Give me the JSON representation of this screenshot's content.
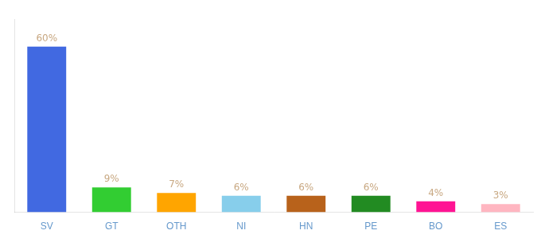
{
  "chart_data": {
    "type": "bar",
    "categories": [
      "SV",
      "GT",
      "OTH",
      "NI",
      "HN",
      "PE",
      "BO",
      "ES"
    ],
    "values": [
      60,
      9,
      7,
      6,
      6,
      6,
      4,
      3
    ],
    "value_labels": [
      "60%",
      "9%",
      "7%",
      "6%",
      "6%",
      "6%",
      "4%",
      "3%"
    ],
    "colors": [
      "#4169e1",
      "#32cd32",
      "#ffa500",
      "#87ceeb",
      "#b8621b",
      "#228b22",
      "#ff1493",
      "#ffb6c1"
    ],
    "ylim": [
      0,
      70
    ],
    "grid": false,
    "data_labels": true,
    "tick_labels": "x"
  }
}
